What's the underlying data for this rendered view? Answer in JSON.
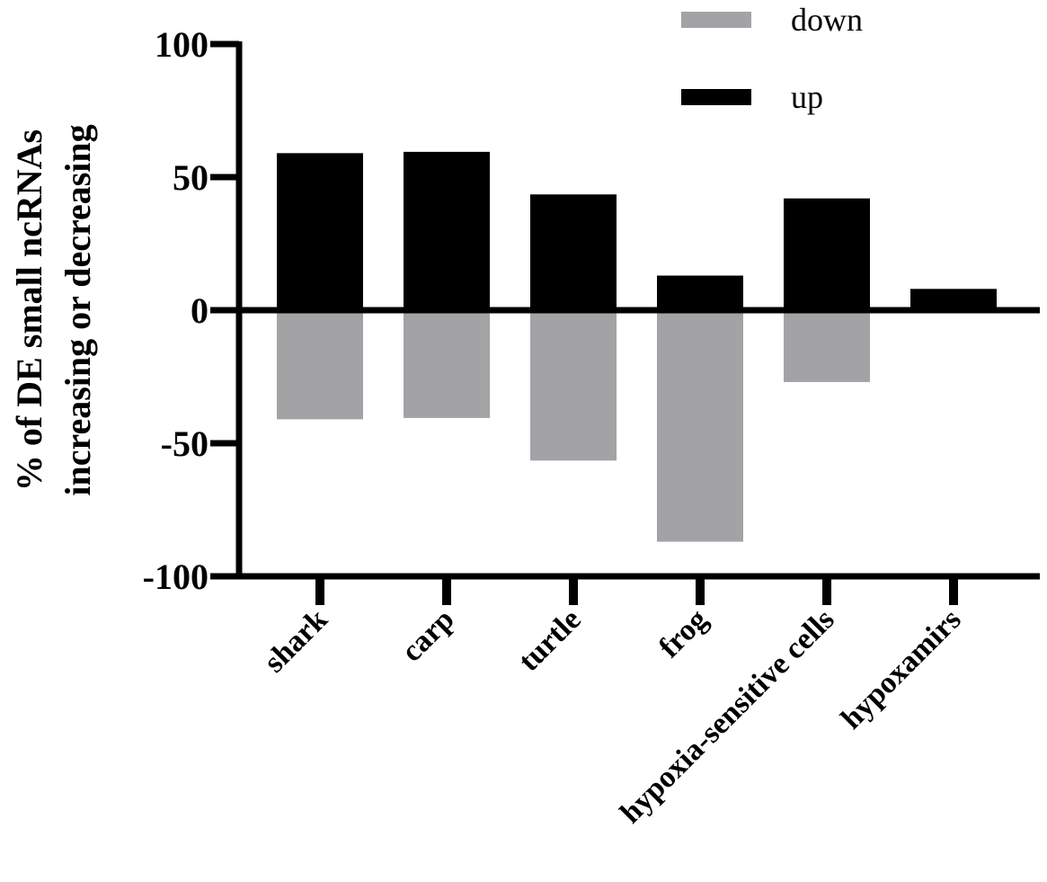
{
  "chart_data": {
    "type": "bar",
    "stacked": "diverging",
    "categories": [
      "shark",
      "carp",
      "turtle",
      "frog",
      "hypoxia-sensitive cells",
      "hypoxamirs"
    ],
    "series": [
      {
        "name": "down",
        "values": [
          -41,
          -40.5,
          -56.5,
          -87,
          -27,
          0
        ],
        "color": "#a3a2a5"
      },
      {
        "name": "up",
        "values": [
          59,
          59.5,
          43.5,
          13,
          42,
          8
        ],
        "color": "#000000"
      }
    ],
    "ylabel": "% of DE small ncRNAs increasing or decreasing",
    "ylabel_lines": [
      "% of DE small ncRNAs",
      "increasing or decreasing"
    ],
    "ylim": [
      -100,
      100
    ],
    "yticks": [
      100,
      50,
      0,
      -50,
      -100
    ],
    "legend_position": "top-right",
    "grid": false
  }
}
